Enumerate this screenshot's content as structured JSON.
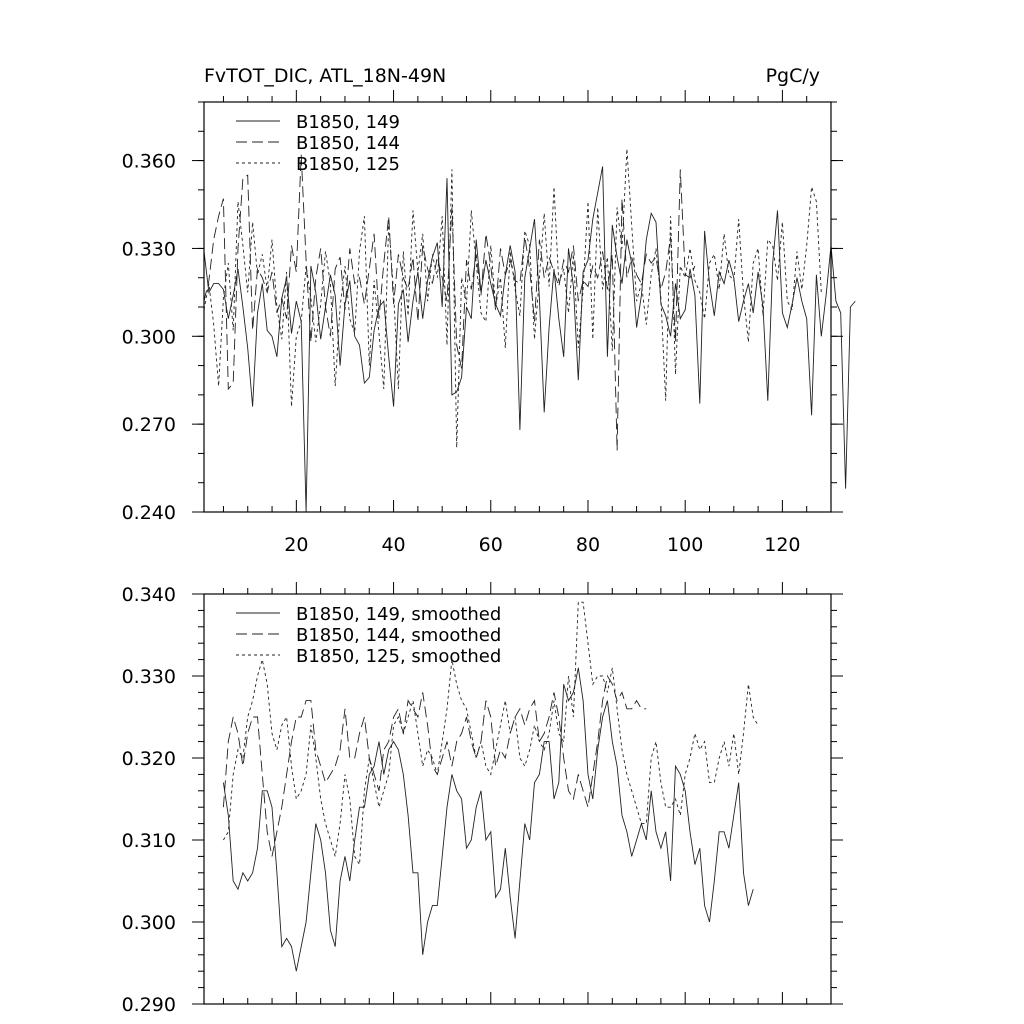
{
  "chart_data": [
    {
      "type": "line",
      "title_left": "FvTOT_DIC, ATL_18N-49N",
      "title_right": "PgC/y",
      "xlabel": "",
      "ylabel": "",
      "xlim": [
        1,
        130
      ],
      "ylim": [
        0.24,
        0.38
      ],
      "grid": false,
      "legend_position": "top-left",
      "x_ticks": [
        20,
        40,
        60,
        80,
        100,
        120
      ],
      "x_tick_labels": [
        "20",
        "40",
        "60",
        "80",
        "100",
        "120"
      ],
      "y_ticks": [
        0.24,
        0.27,
        0.3,
        0.33,
        0.36
      ],
      "y_tick_labels": [
        "0.240",
        "0.270",
        "0.300",
        "0.330",
        "0.360"
      ],
      "x_start": 1,
      "series": [
        {
          "name": "B1850, 149",
          "style": "solid",
          "values": [
            0.329,
            0.315,
            0.318,
            0.318,
            0.316,
            0.306,
            0.314,
            0.323,
            0.31,
            0.296,
            0.276,
            0.308,
            0.318,
            0.302,
            0.3,
            0.293,
            0.313,
            0.32,
            0.301,
            0.312,
            0.305,
            0.24,
            0.324,
            0.315,
            0.299,
            0.31,
            0.321,
            0.314,
            0.29,
            0.311,
            0.319,
            0.3,
            0.297,
            0.284,
            0.286,
            0.302,
            0.31,
            0.312,
            0.293,
            0.276,
            0.311,
            0.316,
            0.298,
            0.312,
            0.322,
            0.306,
            0.319,
            0.327,
            0.332,
            0.31,
            0.354,
            0.28,
            0.281,
            0.286,
            0.31,
            0.306,
            0.333,
            0.315,
            0.326,
            0.318,
            0.311,
            0.307,
            0.321,
            0.331,
            0.322,
            0.268,
            0.32,
            0.33,
            0.34,
            0.313,
            0.274,
            0.303,
            0.323,
            0.306,
            0.293,
            0.33,
            0.317,
            0.285,
            0.322,
            0.326,
            0.34,
            0.349,
            0.358,
            0.293,
            0.338,
            0.327,
            0.318,
            0.333,
            0.325,
            0.303,
            0.314,
            0.333,
            0.342,
            0.339,
            0.311,
            0.307,
            0.3,
            0.318,
            0.306,
            0.309,
            0.323,
            0.314,
            0.277,
            0.336,
            0.318,
            0.307,
            0.322,
            0.318,
            0.326,
            0.32,
            0.305,
            0.312,
            0.318,
            0.308,
            0.322,
            0.31,
            0.278,
            0.325,
            0.343,
            0.308,
            0.303,
            0.311,
            0.32,
            0.312,
            0.306,
            0.273,
            0.321,
            0.3,
            0.314,
            0.331,
            0.312,
            0.308,
            0.248,
            0.31,
            0.312
          ]
        },
        {
          "name": "B1850, 144",
          "style": "dashed",
          "values": [
            0.312,
            0.319,
            0.333,
            0.341,
            0.347,
            0.282,
            0.284,
            0.33,
            0.354,
            0.355,
            0.302,
            0.323,
            0.32,
            0.315,
            0.322,
            0.308,
            0.313,
            0.306,
            0.331,
            0.322,
            0.362,
            0.326,
            0.298,
            0.32,
            0.33,
            0.31,
            0.3,
            0.323,
            0.327,
            0.309,
            0.33,
            0.318,
            0.32,
            0.311,
            0.323,
            0.335,
            0.306,
            0.325,
            0.341,
            0.311,
            0.328,
            0.32,
            0.316,
            0.327,
            0.305,
            0.331,
            0.323,
            0.318,
            0.327,
            0.32,
            0.312,
            0.344,
            0.297,
            0.289,
            0.326,
            0.316,
            0.328,
            0.314,
            0.335,
            0.324,
            0.309,
            0.33,
            0.321,
            0.326,
            0.319,
            0.318,
            0.334,
            0.323,
            0.305,
            0.333,
            0.32,
            0.327,
            0.322,
            0.317,
            0.326,
            0.322,
            0.331,
            0.312,
            0.319,
            0.317,
            0.324,
            0.32,
            0.329,
            0.316,
            0.328,
            0.261,
            0.347,
            0.32,
            0.327,
            0.321,
            0.318,
            0.328,
            0.325,
            0.327,
            0.316,
            0.322,
            0.334,
            0.298,
            0.357,
            0.321,
            0.32,
            0.324
          ]
        },
        {
          "name": "B1850, 125",
          "style": "dotted",
          "values": [
            0.309,
            0.318,
            0.304,
            0.283,
            0.313,
            0.325,
            0.302,
            0.346,
            0.331,
            0.315,
            0.339,
            0.321,
            0.328,
            0.316,
            0.333,
            0.31,
            0.299,
            0.322,
            0.276,
            0.3,
            0.305,
            0.324,
            0.313,
            0.298,
            0.311,
            0.329,
            0.318,
            0.283,
            0.31,
            0.324,
            0.306,
            0.301,
            0.329,
            0.341,
            0.29,
            0.319,
            0.301,
            0.282,
            0.339,
            0.315,
            0.282,
            0.329,
            0.307,
            0.343,
            0.322,
            0.335,
            0.312,
            0.328,
            0.32,
            0.341,
            0.297,
            0.357,
            0.262,
            0.32,
            0.311,
            0.343,
            0.325,
            0.308,
            0.305,
            0.331,
            0.31,
            0.32,
            0.296,
            0.329,
            0.316,
            0.307,
            0.336,
            0.331,
            0.299,
            0.32,
            0.342,
            0.317,
            0.351,
            0.318,
            0.323,
            0.308,
            0.328,
            0.296,
            0.316,
            0.346,
            0.299,
            0.344,
            0.316,
            0.327,
            0.295,
            0.344,
            0.33,
            0.364,
            0.338,
            0.312,
            0.318,
            0.304,
            0.321,
            0.33,
            0.313,
            0.278,
            0.341,
            0.287,
            0.324,
            0.32,
            0.33,
            0.319,
            0.315,
            0.306,
            0.325,
            0.328,
            0.316,
            0.335,
            0.321,
            0.319,
            0.34,
            0.314,
            0.298,
            0.325,
            0.33,
            0.307,
            0.333,
            0.331,
            0.319,
            0.339,
            0.312,
            0.309,
            0.329,
            0.316,
            0.331,
            0.351,
            0.346,
            0.315
          ]
        }
      ]
    },
    {
      "type": "line",
      "xlabel": "",
      "ylabel": "",
      "xlim": [
        1,
        130
      ],
      "ylim": [
        0.29,
        0.34
      ],
      "grid": false,
      "legend_position": "top-left",
      "x_ticks": [
        20,
        40,
        60,
        80,
        100,
        120
      ],
      "y_ticks": [
        0.29,
        0.3,
        0.31,
        0.32,
        0.33,
        0.34
      ],
      "y_tick_labels": [
        "0.290",
        "0.300",
        "0.310",
        "0.320",
        "0.330",
        "0.340"
      ],
      "x_start": 5,
      "series": [
        {
          "name": "B1850, 149, smoothed",
          "style": "solid",
          "values": [
            0.317,
            0.313,
            0.305,
            0.304,
            0.306,
            0.305,
            0.306,
            0.309,
            0.316,
            0.316,
            0.314,
            0.306,
            0.297,
            0.298,
            0.297,
            0.294,
            0.297,
            0.3,
            0.306,
            0.312,
            0.31,
            0.306,
            0.299,
            0.297,
            0.305,
            0.308,
            0.305,
            0.31,
            0.314,
            0.314,
            0.318,
            0.319,
            0.322,
            0.318,
            0.321,
            0.322,
            0.321,
            0.318,
            0.313,
            0.306,
            0.306,
            0.296,
            0.3,
            0.302,
            0.302,
            0.308,
            0.314,
            0.318,
            0.316,
            0.315,
            0.309,
            0.31,
            0.314,
            0.316,
            0.31,
            0.311,
            0.303,
            0.304,
            0.309,
            0.303,
            0.298,
            0.305,
            0.312,
            0.31,
            0.317,
            0.318,
            0.322,
            0.322,
            0.315,
            0.317,
            0.329,
            0.327,
            0.328,
            0.331,
            0.327,
            0.318,
            0.315,
            0.321,
            0.325,
            0.327,
            0.322,
            0.319,
            0.313,
            0.311,
            0.308,
            0.31,
            0.312,
            0.31,
            0.316,
            0.311,
            0.309,
            0.311,
            0.305,
            0.319,
            0.318,
            0.316,
            0.311,
            0.307,
            0.309,
            0.302,
            0.3,
            0.305,
            0.311,
            0.311,
            0.309,
            0.313,
            0.317,
            0.306,
            0.302,
            0.304
          ]
        },
        {
          "name": "B1850, 144, smoothed",
          "style": "dashed",
          "values": [
            0.314,
            0.322,
            0.325,
            0.323,
            0.319,
            0.323,
            0.325,
            0.325,
            0.318,
            0.311,
            0.308,
            0.311,
            0.314,
            0.318,
            0.322,
            0.325,
            0.325,
            0.327,
            0.327,
            0.321,
            0.319,
            0.317,
            0.318,
            0.319,
            0.321,
            0.326,
            0.32,
            0.32,
            0.323,
            0.325,
            0.32,
            0.318,
            0.316,
            0.321,
            0.322,
            0.325,
            0.326,
            0.323,
            0.327,
            0.326,
            0.325,
            0.328,
            0.324,
            0.319,
            0.318,
            0.32,
            0.322,
            0.319,
            0.322,
            0.323,
            0.325,
            0.322,
            0.32,
            0.322,
            0.327,
            0.325,
            0.319,
            0.321,
            0.32,
            0.323,
            0.325,
            0.326,
            0.324,
            0.326,
            0.327,
            0.322,
            0.323,
            0.325,
            0.328,
            0.325,
            0.32,
            0.316,
            0.315,
            0.318,
            0.316,
            0.314,
            0.318,
            0.322,
            0.327,
            0.33,
            0.329,
            0.327,
            0.328,
            0.326,
            0.326,
            0.327,
            0.326,
            0.326
          ]
        },
        {
          "name": "B1850, 125, smoothed",
          "style": "dotted",
          "values": [
            0.31,
            0.311,
            0.318,
            0.321,
            0.32,
            0.325,
            0.327,
            0.33,
            0.332,
            0.329,
            0.323,
            0.321,
            0.324,
            0.325,
            0.319,
            0.315,
            0.316,
            0.318,
            0.324,
            0.32,
            0.315,
            0.312,
            0.31,
            0.308,
            0.312,
            0.318,
            0.315,
            0.308,
            0.307,
            0.316,
            0.32,
            0.317,
            0.314,
            0.316,
            0.318,
            0.324,
            0.325,
            0.323,
            0.325,
            0.327,
            0.323,
            0.319,
            0.321,
            0.32,
            0.318,
            0.322,
            0.326,
            0.332,
            0.329,
            0.327,
            0.326,
            0.323,
            0.32,
            0.322,
            0.319,
            0.318,
            0.321,
            0.324,
            0.327,
            0.323,
            0.325,
            0.32,
            0.319,
            0.321,
            0.324,
            0.322,
            0.321,
            0.323,
            0.327,
            0.323,
            0.322,
            0.33,
            0.325,
            0.339,
            0.339,
            0.334,
            0.329,
            0.33,
            0.33,
            0.328,
            0.331,
            0.326,
            0.321,
            0.318,
            0.316,
            0.314,
            0.312,
            0.312,
            0.32,
            0.322,
            0.317,
            0.314,
            0.314,
            0.315,
            0.313,
            0.318,
            0.32,
            0.323,
            0.321,
            0.322,
            0.317,
            0.317,
            0.32,
            0.322,
            0.319,
            0.323,
            0.318,
            0.323,
            0.329,
            0.325,
            0.324
          ]
        }
      ]
    }
  ]
}
